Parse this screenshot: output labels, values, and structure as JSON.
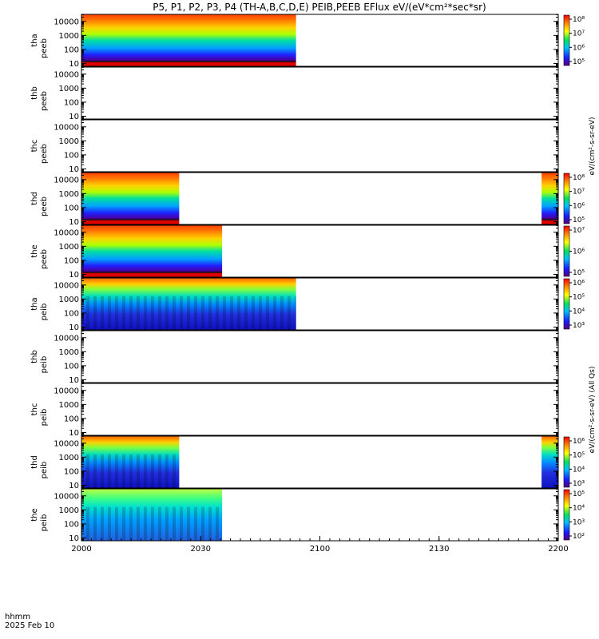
{
  "chart_data": {
    "type": "heatmap",
    "title": "P5, P1, P2, P3, P4 (TH-A,B,C,D,E) PEIB,PEEB EFlux eV/(eV*cm²*sec*sr)",
    "x_axis": {
      "ticks": [
        "2000",
        "2030",
        "2100",
        "2130",
        "2200"
      ],
      "label_line1": "hhmm",
      "label_line2": "2025 Feb 10"
    },
    "y_ticks": [
      "10",
      "100",
      "1000",
      "10000"
    ],
    "colorbar_unit_eflux": "eV/(cm²-s-sr-eV)",
    "colorbar_unit_ions": "eV/(cm²-s-sr-eV) (All Qs)",
    "panels": [
      {
        "ylabel1": "tha",
        "ylabel2": "peeb",
        "data_end_fraction": 0.45,
        "data_start_fraction": 0.0,
        "second_start_fraction": null,
        "colorbar": [
          "10⁵",
          "10⁶",
          "10⁷",
          "10⁸"
        ],
        "style": "electron"
      },
      {
        "ylabel1": "thb",
        "ylabel2": "peeb",
        "data_end_fraction": 0,
        "data_start_fraction": 0.0,
        "second_start_fraction": null,
        "colorbar": [],
        "style": "empty"
      },
      {
        "ylabel1": "thc",
        "ylabel2": "peeb",
        "data_end_fraction": 0,
        "data_start_fraction": 0.0,
        "second_start_fraction": null,
        "colorbar": [],
        "style": "empty"
      },
      {
        "ylabel1": "thd",
        "ylabel2": "peeb",
        "data_end_fraction": 0.205,
        "data_start_fraction": 0.0,
        "second_start_fraction": 0.965,
        "colorbar": [
          "10⁵",
          "10⁶",
          "10⁷",
          "10⁸"
        ],
        "style": "electron"
      },
      {
        "ylabel1": "the",
        "ylabel2": "peeb",
        "data_end_fraction": 0.295,
        "data_start_fraction": 0.0,
        "second_start_fraction": null,
        "colorbar": [
          "10⁵",
          "10⁶",
          "10⁷"
        ],
        "style": "electron"
      },
      {
        "ylabel1": "tha",
        "ylabel2": "peib",
        "data_end_fraction": 0.45,
        "data_start_fraction": 0.0,
        "second_start_fraction": null,
        "colorbar": [
          "10³",
          "10⁴",
          "10⁵",
          "10⁶"
        ],
        "style": "ion"
      },
      {
        "ylabel1": "thb",
        "ylabel2": "peib",
        "data_end_fraction": 0,
        "data_start_fraction": 0.0,
        "second_start_fraction": null,
        "colorbar": [],
        "style": "empty"
      },
      {
        "ylabel1": "thc",
        "ylabel2": "peib",
        "data_end_fraction": 0,
        "data_start_fraction": 0.0,
        "second_start_fraction": null,
        "colorbar": [],
        "style": "empty"
      },
      {
        "ylabel1": "thd",
        "ylabel2": "peib",
        "data_end_fraction": 0.205,
        "data_start_fraction": 0.0,
        "second_start_fraction": 0.965,
        "colorbar": [
          "10³",
          "10⁴",
          "10⁵",
          "10⁶"
        ],
        "style": "ion"
      },
      {
        "ylabel1": "the",
        "ylabel2": "peib",
        "data_end_fraction": 0.295,
        "data_start_fraction": 0.0,
        "second_start_fraction": null,
        "colorbar": [
          "10²",
          "10³",
          "10⁴",
          "10⁵"
        ],
        "style": "ion2"
      }
    ],
    "grid": false,
    "colorscale": "rainbow (purple-blue-green-yellow-red)"
  }
}
